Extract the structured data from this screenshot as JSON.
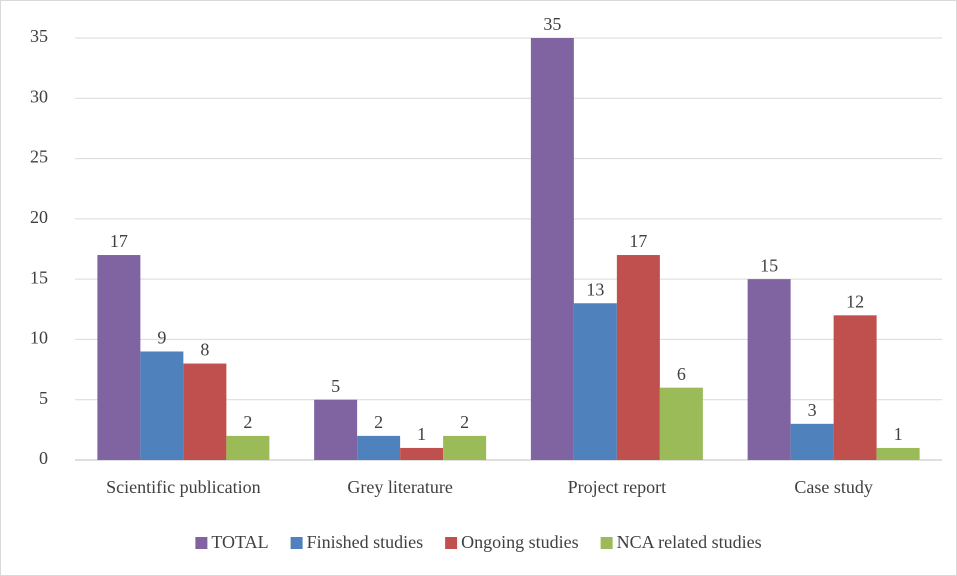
{
  "chart_data": {
    "type": "bar",
    "categories": [
      "Scientific publication",
      "Grey literature",
      "Project report",
      "Case study"
    ],
    "series": [
      {
        "name": "TOTAL",
        "color": "#8064a2",
        "values": [
          17,
          5,
          35,
          15
        ]
      },
      {
        "name": "Finished studies",
        "color": "#4f81bd",
        "values": [
          9,
          2,
          13,
          3
        ]
      },
      {
        "name": "Ongoing studies",
        "color": "#c0504d",
        "values": [
          8,
          1,
          17,
          12
        ]
      },
      {
        "name": "NCA related studies",
        "color": "#9bbb59",
        "values": [
          2,
          2,
          6,
          1
        ]
      }
    ],
    "ylim": [
      0,
      35
    ],
    "yticks": [
      0,
      5,
      10,
      15,
      20,
      25,
      30,
      35
    ],
    "grid": true,
    "legend": "bottom"
  }
}
